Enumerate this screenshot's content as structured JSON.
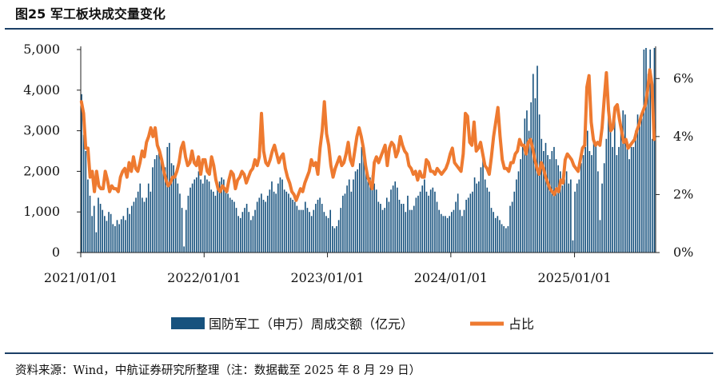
{
  "figure": {
    "title": "图25  军工板块成交量变化",
    "source": "资料来源：Wind，中航证券研究所整理（注：数据截至 2025 年 8 月 29 日）"
  },
  "colors": {
    "bar": "#17527e",
    "line": "#ee7a30",
    "rule": "#1b3f66"
  },
  "chart_data": {
    "type": "bar+line",
    "x_tick_labels": [
      "2021/01/01",
      "2022/01/01",
      "2023/01/01",
      "2024/01/01",
      "2025/01/01"
    ],
    "x_range": [
      "2021/01/01",
      "2025/08/29"
    ],
    "y_left": {
      "ticks": [
        "0",
        "1,000",
        "2,000",
        "3,000",
        "4,000",
        "5,000"
      ],
      "ylim": [
        0,
        5000
      ]
    },
    "y_right": {
      "ticks": [
        "0%",
        "2%",
        "4%",
        "6%"
      ],
      "ylim": [
        0,
        7
      ]
    },
    "legend_position": "bottom",
    "grid": false,
    "series": [
      {
        "name": "国防军工（申万）周成交额（亿元）",
        "type": "bar",
        "axis": "left",
        "values": [
          3900,
          2900,
          2500,
          1800,
          1400,
          900,
          1150,
          500,
          1350,
          1200,
          1050,
          900,
          780,
          1000,
          950,
          700,
          650,
          800,
          700,
          820,
          900,
          800,
          1100,
          950,
          1150,
          1250,
          1350,
          1500,
          1700,
          1350,
          1250,
          1350,
          1700,
          1500,
          2100,
          2300,
          2400,
          2500,
          2300,
          2200,
          2100,
          2600,
          2700,
          2200,
          2150,
          1900,
          1700,
          1450,
          1100,
          150,
          1050,
          1400,
          1600,
          1700,
          1800,
          1850,
          2000,
          1800,
          1700,
          1900,
          1800,
          1750,
          1550,
          1500,
          1400,
          1650,
          1750,
          1850,
          1800,
          1500,
          1450,
          1350,
          1300,
          1250,
          1100,
          900,
          850,
          1000,
          1100,
          1200,
          1000,
          800,
          900,
          1050,
          1250,
          1350,
          1450,
          1300,
          1250,
          1400,
          1550,
          1750,
          1500,
          1450,
          1700,
          1850,
          1800,
          1550,
          1500,
          1450,
          1350,
          1300,
          1250,
          1150,
          1050,
          1050,
          1050,
          1250,
          1100,
          1000,
          900,
          1050,
          1200,
          1300,
          1350,
          1200,
          1000,
          900,
          850,
          1050,
          650,
          600,
          650,
          800,
          1100,
          1400,
          1450,
          1650,
          1800,
          1500,
          1800,
          2000,
          2050,
          2200,
          2600,
          2400,
          2000,
          1750,
          1850,
          1900,
          1700,
          1550,
          1250,
          1200,
          1050,
          1100,
          1350,
          1250,
          1550,
          1650,
          1750,
          1600,
          1300,
          1200,
          1200,
          1000,
          1400,
          1050,
          1050,
          1150,
          1350,
          1400,
          1500,
          1650,
          1800,
          1500,
          1400,
          1550,
          1600,
          1500,
          1250,
          1050,
          950,
          900,
          900,
          850,
          900,
          1000,
          1050,
          1250,
          1450,
          1050,
          900,
          1050,
          1300,
          1350,
          1450,
          1500,
          1850,
          1700,
          1750,
          2100,
          2300,
          1800,
          1600,
          1500,
          1100,
          1000,
          850,
          900,
          800,
          700,
          650,
          600,
          650,
          1150,
          1250,
          1500,
          1800,
          2000,
          2300,
          2600,
          3300,
          3500,
          3000,
          3700,
          4400,
          3800,
          4600,
          3400,
          2800,
          2500,
          2700,
          2400,
          2300,
          2500,
          2600,
          2300,
          2150,
          2000,
          1650,
          1800,
          2000,
          1700,
          1800,
          300,
          1500,
          1700,
          1800,
          2200,
          2400,
          2600,
          3000,
          2500,
          2400,
          2700,
          2700,
          2000,
          800,
          1700,
          2200,
          2800,
          3500,
          3000,
          2600,
          3300,
          2400,
          2600,
          3100,
          3500,
          3400,
          2700,
          2300,
          2600,
          2600,
          3000,
          3400,
          3200,
          3300,
          5000,
          5200,
          4400,
          5000,
          2800,
          5200
        ]
      },
      {
        "name": "占比",
        "type": "line",
        "axis": "right",
        "values": [
          5.2,
          4.8,
          3.6,
          3.6,
          2.6,
          2.8,
          2.1,
          2.8,
          2.3,
          2.2,
          2.2,
          2.8,
          2.5,
          2.1,
          2.3,
          2.2,
          2.2,
          2.1,
          2.6,
          2.8,
          2.9,
          2.6,
          3.1,
          2.8,
          3.3,
          2.9,
          2.8,
          3.1,
          3.5,
          3.3,
          3.8,
          4.0,
          4.3,
          4.0,
          4.3,
          3.7,
          3.5,
          3.2,
          2.8,
          2.5,
          2.3,
          2.4,
          2.6,
          2.6,
          2.8,
          3.1,
          3.6,
          3.8,
          3.3,
          3.0,
          3.1,
          3.5,
          3.1,
          3.0,
          3.3,
          2.7,
          3.2,
          3.2,
          2.8,
          2.7,
          3.3,
          3.0,
          2.5,
          2.2,
          2.1,
          2.3,
          2.2,
          2.1,
          2.5,
          2.8,
          2.7,
          2.2,
          2.5,
          2.6,
          2.8,
          2.7,
          2.4,
          2.6,
          2.8,
          2.9,
          3.2,
          3.0,
          3.3,
          4.8,
          3.5,
          3.1,
          3.0,
          3.2,
          3.5,
          3.7,
          3.4,
          3.1,
          3.3,
          3.4,
          2.9,
          2.6,
          2.4,
          2.1,
          2.0,
          1.8,
          2.0,
          2.2,
          2.1,
          2.4,
          2.6,
          2.8,
          3.2,
          3.0,
          3.1,
          2.7,
          3.6,
          4.2,
          5.2,
          4.1,
          3.7,
          3.0,
          2.6,
          2.9,
          3.1,
          3.3,
          3.0,
          3.1,
          3.4,
          3.8,
          3.2,
          3.0,
          3.5,
          4.0,
          4.3,
          4.0,
          3.6,
          3.0,
          2.6,
          2.4,
          2.2,
          3.1,
          3.3,
          3.1,
          3.3,
          3.5,
          3.7,
          3.0,
          3.6,
          3.8,
          3.7,
          3.3,
          3.5,
          4.0,
          3.7,
          3.5,
          3.4,
          3.0,
          2.9,
          2.7,
          2.8,
          2.5,
          2.8,
          2.6,
          2.6,
          3.2,
          3.1,
          2.8,
          2.8,
          2.7,
          2.9,
          2.8,
          2.7,
          2.8,
          2.9,
          3.1,
          3.4,
          3.6,
          3.1,
          3.0,
          2.9,
          2.8,
          3.4,
          4.8,
          4.7,
          3.8,
          3.7,
          4.5,
          3.5,
          3.6,
          3.8,
          3.4,
          3.0,
          2.9,
          2.7,
          3.3,
          4.0,
          4.5,
          5.0,
          4.0,
          3.2,
          2.9,
          2.9,
          2.8,
          3.1,
          3.1,
          3.4,
          3.5,
          3.9,
          3.7,
          3.7,
          3.4,
          3.8,
          3.9,
          3.6,
          3.2,
          2.9,
          2.7,
          3.1,
          2.9,
          2.6,
          2.4,
          2.2,
          2.1,
          2.0,
          2.2,
          2.1,
          2.5,
          2.4,
          3.2,
          3.4,
          3.3,
          3.2,
          3.0,
          2.9,
          2.8,
          3.2,
          3.6,
          3.7,
          5.7,
          6.1,
          4.5,
          3.9,
          3.7,
          3.8,
          3.7,
          4.3,
          5.3,
          6.2,
          4.9,
          4.2,
          4.3,
          5.0,
          5.1,
          4.6,
          4.2,
          3.8,
          3.9,
          3.6,
          3.7,
          3.8,
          3.9,
          4.2,
          4.4,
          4.7,
          4.9,
          5.1,
          5.6,
          6.3,
          5.8,
          3.9
        ]
      }
    ]
  }
}
